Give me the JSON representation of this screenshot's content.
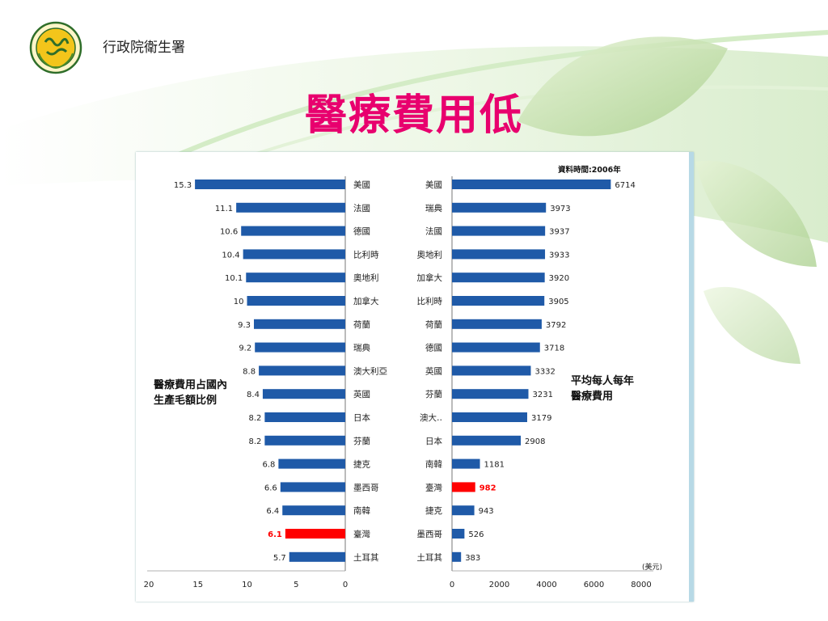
{
  "header": {
    "org_name": "行政院衛生署",
    "title": "醫療費用低"
  },
  "colors": {
    "bar": "#1f5aa8",
    "highlight": "#ff0000",
    "title": "#e8006e"
  },
  "chart_data": [
    {
      "type": "bar",
      "orientation": "horizontal",
      "direction": "right-to-left",
      "title": "醫療費用占國內生產毛額比例",
      "title_lines": [
        "醫療費用占國內",
        "生產毛額比例"
      ],
      "categories": [
        "美國",
        "法國",
        "德國",
        "比利時",
        "奧地利",
        "加拿大",
        "荷蘭",
        "瑞典",
        "澳大利亞",
        "英國",
        "日本",
        "芬蘭",
        "捷克",
        "墨西哥",
        "南韓",
        "臺灣",
        "土耳其"
      ],
      "values": [
        15.3,
        11.1,
        10.6,
        10.4,
        10.1,
        10,
        9.3,
        9.2,
        8.8,
        8.4,
        8.2,
        8.2,
        6.8,
        6.6,
        6.4,
        6.1,
        5.7
      ],
      "value_labels": [
        "15.3",
        "11.1",
        "10.6",
        "10.4",
        "10.1",
        "10",
        "9.3",
        "9.2",
        "8.8",
        "8.4",
        "8.2",
        "8.2",
        "6.8",
        "6.6",
        "6.4",
        "6.1",
        "5.7"
      ],
      "highlight_category": "臺灣",
      "xlim": [
        0,
        20
      ],
      "xticks": [
        "20",
        "15",
        "10",
        "5",
        "0"
      ]
    },
    {
      "type": "bar",
      "orientation": "horizontal",
      "title": "平均每人每年醫療費用",
      "title_lines": [
        "平均每人每年",
        "醫療費用"
      ],
      "note": "資料時間:2006年",
      "unit": "(美元)",
      "categories": [
        "美國",
        "瑞典",
        "法國",
        "奧地利",
        "加拿大",
        "比利時",
        "荷蘭",
        "德國",
        "英國",
        "芬蘭",
        "澳大‥",
        "日本",
        "南韓",
        "臺灣",
        "捷克",
        "墨西哥",
        "土耳其"
      ],
      "values": [
        6714,
        3973,
        3937,
        3933,
        3920,
        3905,
        3792,
        3718,
        3332,
        3231,
        3179,
        2908,
        1181,
        982,
        943,
        526,
        383
      ],
      "value_labels": [
        "6714",
        "3973",
        "3937",
        "3933",
        "3920",
        "3905",
        "3792",
        "3718",
        "3332",
        "3231",
        "3179",
        "2908",
        "1181",
        "982",
        "943",
        "526",
        "383"
      ],
      "highlight_category": "臺灣",
      "xlim": [
        0,
        8000
      ],
      "xticks": [
        "0",
        "2000",
        "4000",
        "6000",
        "8000"
      ]
    }
  ]
}
